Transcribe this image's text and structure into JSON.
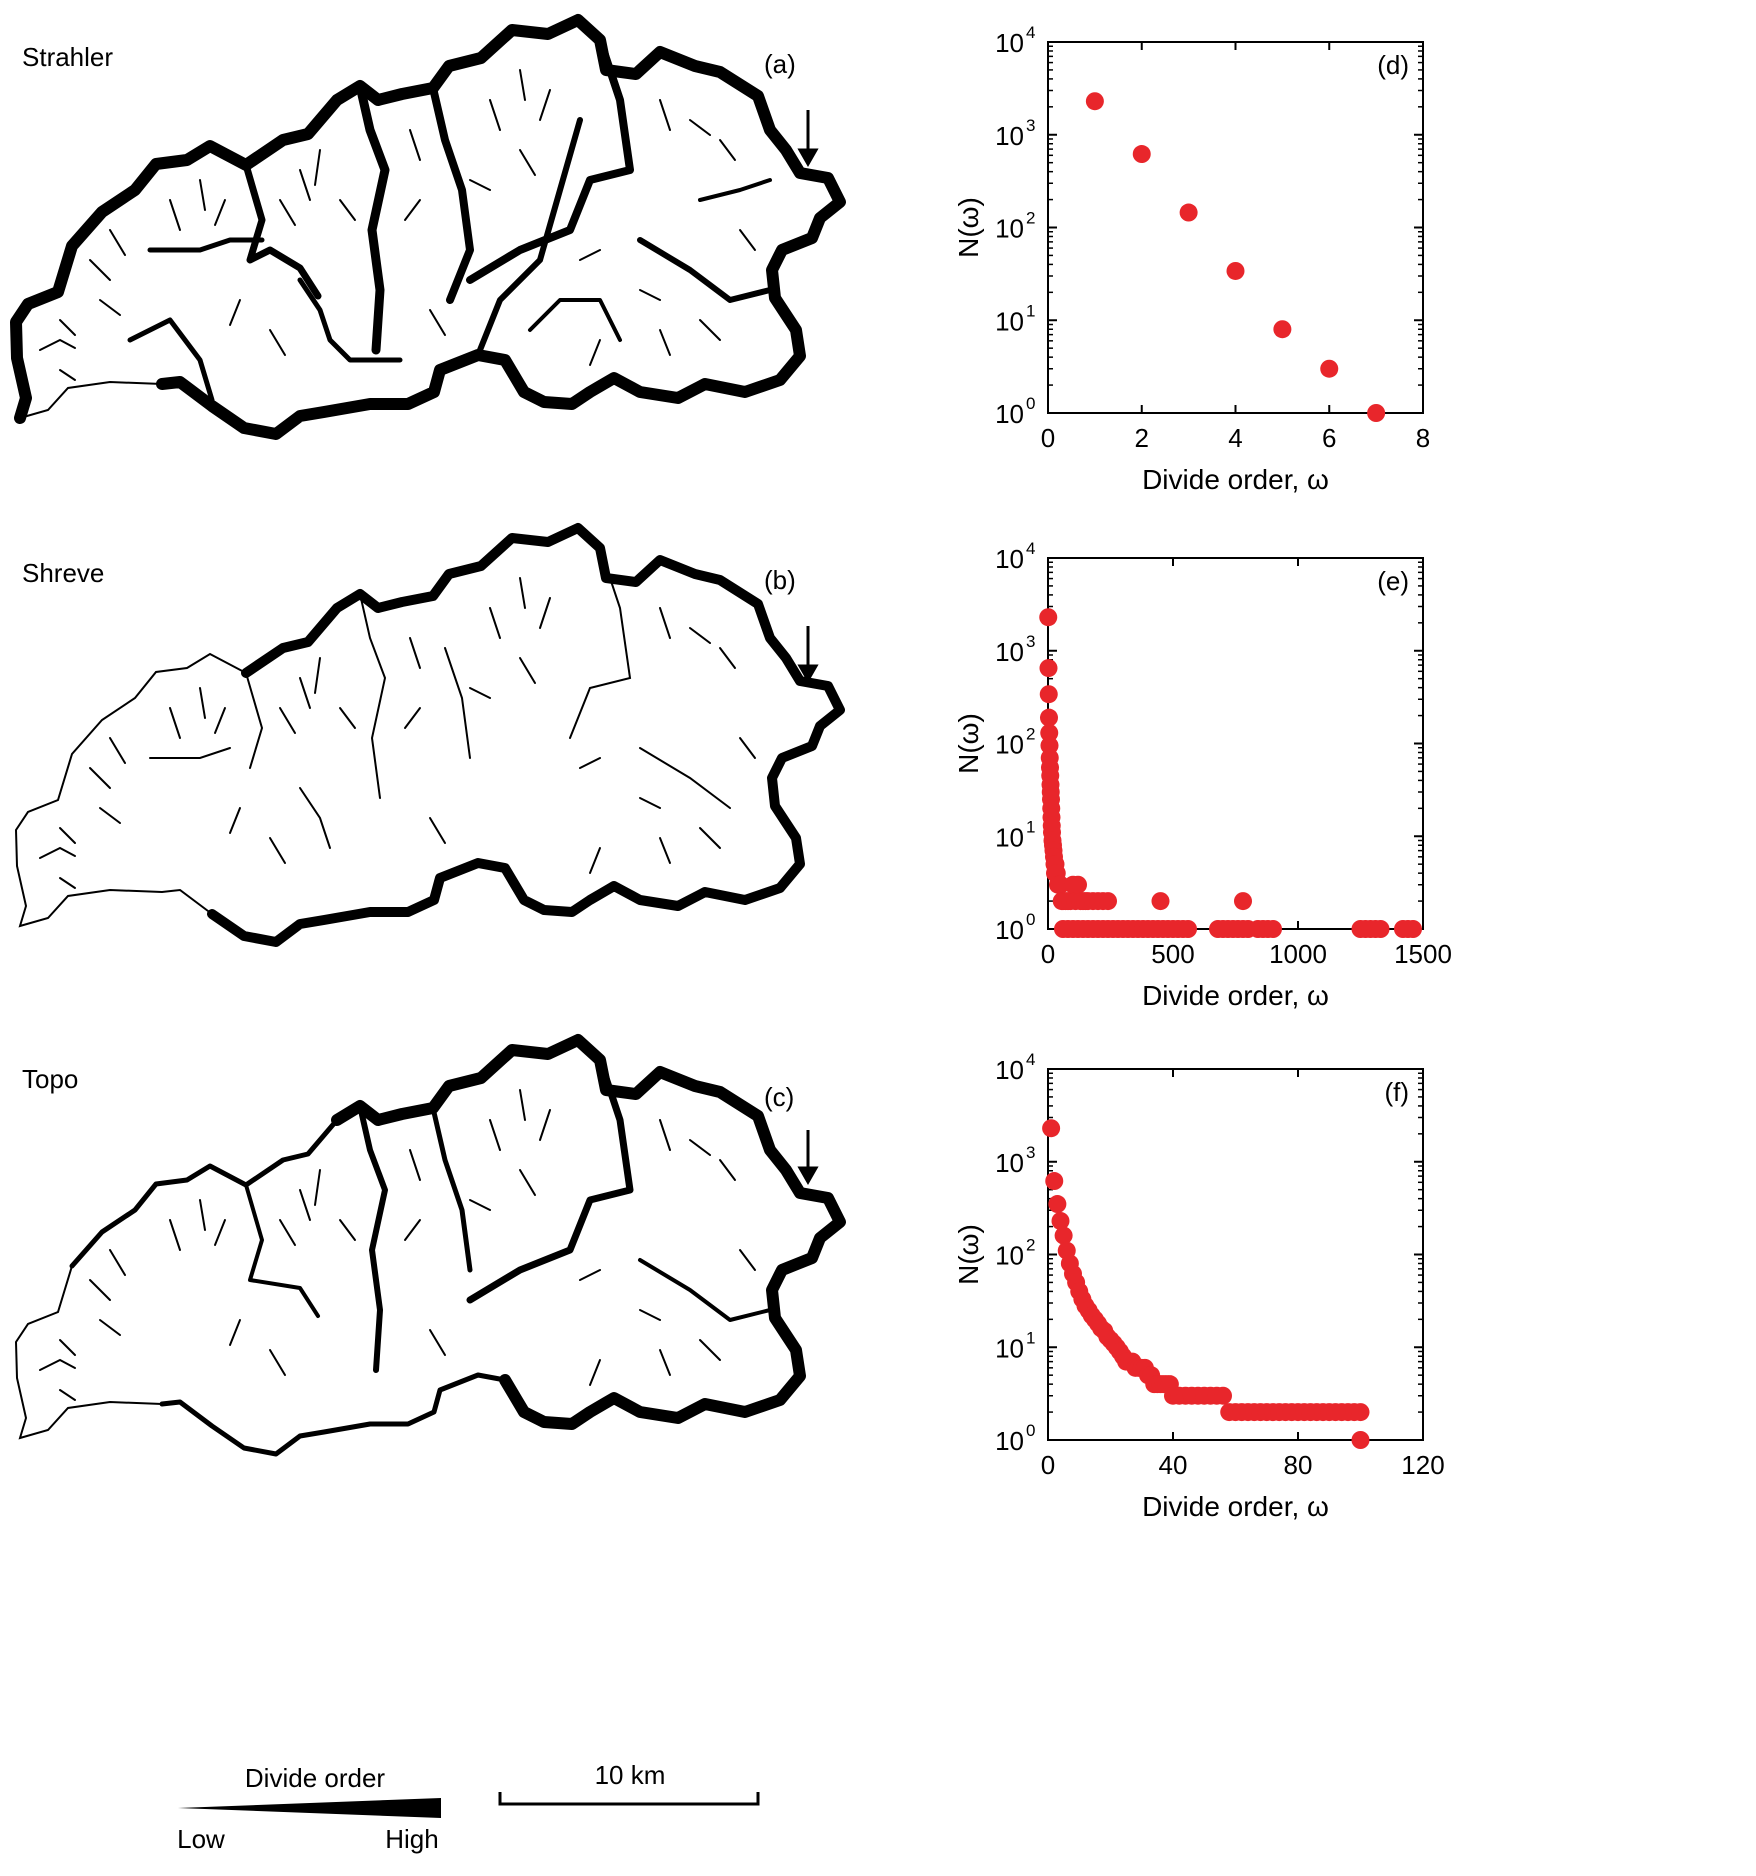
{
  "maps": [
    {
      "name": "Strahler",
      "letter": "(a)"
    },
    {
      "name": "Shreve",
      "letter": "(b)"
    },
    {
      "name": "Topo",
      "letter": "(c)"
    }
  ],
  "legend": {
    "title": "Divide order",
    "low": "Low",
    "high": "High"
  },
  "scalebar": {
    "label": "10 km"
  },
  "colors": {
    "points": "#e8262b",
    "divides": "#000000"
  },
  "icons": [
    "outlet-arrow-icon"
  ],
  "chart_data": [
    {
      "panel": "(d)",
      "type": "scatter",
      "xlabel": "Divide order, ω",
      "ylabel": "N(ω)",
      "xlim": [
        0,
        8
      ],
      "ylim": [
        1,
        10000
      ],
      "yscale": "log",
      "xticks": [
        0,
        2,
        4,
        6,
        8
      ],
      "yticks": [
        1,
        10,
        100,
        1000,
        10000
      ],
      "grid": false,
      "series": [
        {
          "x": [
            1,
            2,
            3,
            4,
            5,
            6,
            7
          ],
          "y": [
            2300,
            620,
            145,
            34,
            8,
            3,
            1
          ]
        }
      ]
    },
    {
      "panel": "(e)",
      "type": "scatter",
      "xlabel": "Divide order, ω",
      "ylabel": "N(ω)",
      "xlim": [
        0,
        1500
      ],
      "ylim": [
        1,
        10000
      ],
      "yscale": "log",
      "xticks": [
        0,
        500,
        1000,
        1500
      ],
      "yticks": [
        1,
        10,
        100,
        1000,
        10000
      ],
      "grid": false,
      "series": [
        {
          "x": [
            1,
            2,
            3,
            4,
            5,
            6,
            7,
            8,
            9,
            10,
            11,
            12,
            13,
            14,
            15,
            16,
            18,
            20,
            22,
            24,
            26,
            28,
            30,
            35,
            40,
            45,
            50,
            55,
            60,
            70,
            80,
            90,
            100,
            110,
            120,
            130,
            140,
            150,
            160,
            180,
            200,
            220,
            240,
            450,
            780,
            60,
            80,
            100,
            120,
            140,
            160,
            180,
            200,
            220,
            240,
            260,
            280,
            300,
            320,
            340,
            360,
            380,
            400,
            420,
            440,
            460,
            480,
            500,
            520,
            540,
            560,
            680,
            700,
            720,
            740,
            760,
            780,
            800,
            840,
            860,
            880,
            900,
            1250,
            1270,
            1290,
            1310,
            1330,
            1420,
            1440,
            1460
          ],
          "y": [
            2300,
            650,
            340,
            190,
            130,
            95,
            70,
            55,
            45,
            36,
            30,
            25,
            20,
            16,
            13,
            11,
            9,
            8,
            7,
            6,
            5,
            4,
            5,
            4,
            3,
            3,
            3,
            2,
            2,
            2,
            2,
            2,
            3,
            2,
            3,
            2,
            2,
            2,
            2,
            2,
            2,
            2,
            2,
            2,
            2,
            1,
            1,
            1,
            1,
            1,
            1,
            1,
            1,
            1,
            1,
            1,
            1,
            1,
            1,
            1,
            1,
            1,
            1,
            1,
            1,
            1,
            1,
            1,
            1,
            1,
            1,
            1,
            1,
            1,
            1,
            1,
            1,
            1,
            1,
            1,
            1,
            1,
            1,
            1,
            1,
            1,
            1,
            1,
            1,
            1
          ]
        }
      ]
    },
    {
      "panel": "(f)",
      "type": "scatter",
      "xlabel": "Divide order, ω",
      "ylabel": "N(ω)",
      "xlim": [
        0,
        120
      ],
      "ylim": [
        1,
        10000
      ],
      "yscale": "log",
      "xticks": [
        0,
        40,
        80,
        120
      ],
      "yticks": [
        1,
        10,
        100,
        1000,
        10000
      ],
      "grid": false,
      "series": [
        {
          "x": [
            1,
            2,
            3,
            4,
            5,
            6,
            7,
            8,
            9,
            10,
            11,
            12,
            13,
            14,
            15,
            16,
            17,
            18,
            19,
            20,
            21,
            22,
            23,
            24,
            25,
            26,
            27,
            28,
            29,
            30,
            31,
            32,
            33,
            34,
            35,
            36,
            37,
            38,
            39,
            40,
            42,
            44,
            46,
            48,
            50,
            52,
            54,
            56,
            58,
            60,
            62,
            64,
            66,
            68,
            70,
            72,
            74,
            76,
            78,
            80,
            82,
            84,
            86,
            88,
            90,
            92,
            94,
            96,
            98,
            100,
            100
          ],
          "y": [
            2300,
            620,
            350,
            230,
            160,
            110,
            80,
            62,
            50,
            40,
            33,
            28,
            25,
            22,
            20,
            18,
            16,
            15,
            13,
            12,
            11,
            10,
            9,
            8,
            7,
            7,
            7,
            6,
            6,
            6,
            6,
            5,
            5,
            4,
            4,
            4,
            4,
            4,
            4,
            3,
            3,
            3,
            3,
            3,
            3,
            3,
            3,
            3,
            2,
            2,
            2,
            2,
            2,
            2,
            2,
            2,
            2,
            2,
            2,
            2,
            2,
            2,
            2,
            2,
            2,
            2,
            2,
            2,
            2,
            2,
            1
          ]
        }
      ]
    }
  ]
}
